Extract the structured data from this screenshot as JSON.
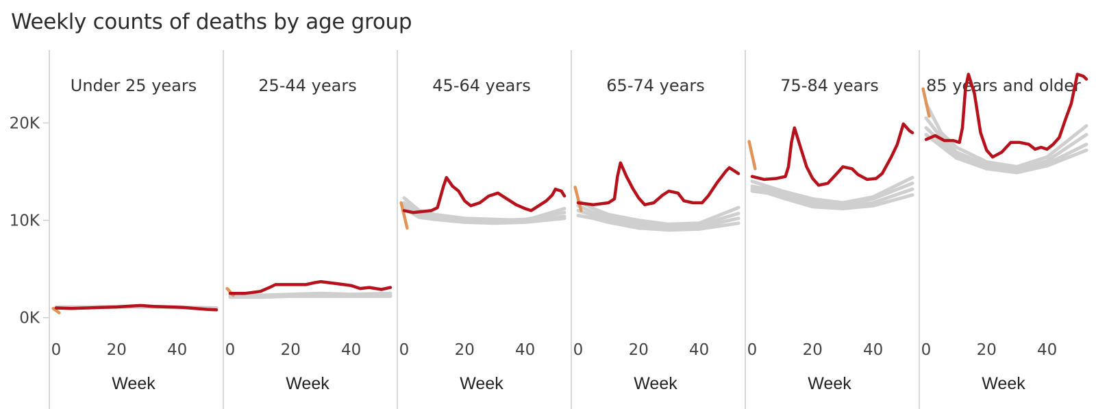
{
  "title": "Weekly counts of deaths by age group",
  "colors": {
    "current_year": "#b5121b",
    "previous_years": "#cfcfcf",
    "prior_year_end": "#e0945a",
    "divider": "#cccccc"
  },
  "chart_data": {
    "type": "line",
    "title": "Weekly counts of deaths by age group",
    "xlabel": "Week",
    "x_ticks": [
      "0",
      "20",
      "40"
    ],
    "y_ticks": [
      "0K",
      "10K",
      "20K"
    ],
    "ylim": [
      -1500,
      27000
    ],
    "xlim": [
      0,
      53
    ],
    "panels": [
      {
        "label": "Under 25 years",
        "current": [
          [
            0,
            1000
          ],
          [
            5,
            950
          ],
          [
            10,
            1000
          ],
          [
            15,
            1050
          ],
          [
            20,
            1100
          ],
          [
            25,
            1200
          ],
          [
            28,
            1250
          ],
          [
            32,
            1150
          ],
          [
            38,
            1100
          ],
          [
            42,
            1050
          ],
          [
            46,
            950
          ],
          [
            50,
            850
          ],
          [
            53,
            800
          ]
        ],
        "previous": [
          [
            [
              0,
              1100
            ],
            [
              10,
              1100
            ],
            [
              20,
              1150
            ],
            [
              30,
              1150
            ],
            [
              40,
              1100
            ],
            [
              53,
              1000
            ]
          ],
          [
            [
              0,
              1000
            ],
            [
              10,
              1050
            ],
            [
              20,
              1100
            ],
            [
              30,
              1100
            ],
            [
              40,
              1050
            ],
            [
              53,
              950
            ]
          ]
        ],
        "prior_year_end": [
          [
            -1,
            950
          ],
          [
            1,
            500
          ]
        ]
      },
      {
        "label": "25-44 years",
        "current": [
          [
            0,
            2500
          ],
          [
            5,
            2500
          ],
          [
            10,
            2700
          ],
          [
            13,
            3100
          ],
          [
            15,
            3400
          ],
          [
            20,
            3400
          ],
          [
            25,
            3400
          ],
          [
            28,
            3600
          ],
          [
            30,
            3700
          ],
          [
            35,
            3500
          ],
          [
            40,
            3300
          ],
          [
            43,
            3000
          ],
          [
            46,
            3100
          ],
          [
            50,
            2900
          ],
          [
            53,
            3100
          ]
        ],
        "previous": [
          [
            [
              0,
              2400
            ],
            [
              10,
              2300
            ],
            [
              20,
              2400
            ],
            [
              30,
              2500
            ],
            [
              40,
              2400
            ],
            [
              53,
              2500
            ]
          ],
          [
            [
              0,
              2200
            ],
            [
              10,
              2200
            ],
            [
              20,
              2300
            ],
            [
              30,
              2300
            ],
            [
              40,
              2300
            ],
            [
              53,
              2300
            ]
          ],
          [
            [
              0,
              2100
            ],
            [
              10,
              2100
            ],
            [
              20,
              2200
            ],
            [
              30,
              2200
            ],
            [
              40,
              2200
            ],
            [
              53,
              2200
            ]
          ]
        ],
        "prior_year_end": [
          [
            -1,
            3000
          ],
          [
            1,
            2300
          ]
        ]
      },
      {
        "label": "45-64 years",
        "current": [
          [
            0,
            11000
          ],
          [
            3,
            10800
          ],
          [
            6,
            10900
          ],
          [
            9,
            11000
          ],
          [
            11,
            11300
          ],
          [
            13,
            13500
          ],
          [
            14,
            14400
          ],
          [
            16,
            13500
          ],
          [
            18,
            13000
          ],
          [
            20,
            12000
          ],
          [
            22,
            11500
          ],
          [
            25,
            11800
          ],
          [
            28,
            12500
          ],
          [
            31,
            12800
          ],
          [
            34,
            12200
          ],
          [
            37,
            11600
          ],
          [
            40,
            11200
          ],
          [
            42,
            11000
          ],
          [
            44,
            11400
          ],
          [
            47,
            12000
          ],
          [
            49,
            12600
          ],
          [
            50,
            13200
          ],
          [
            52,
            13000
          ],
          [
            53,
            12500
          ]
        ],
        "previous": [
          [
            [
              0,
              12300
            ],
            [
              5,
              11000
            ],
            [
              10,
              10600
            ],
            [
              20,
              10200
            ],
            [
              30,
              10100
            ],
            [
              40,
              10000
            ],
            [
              53,
              11200
            ]
          ],
          [
            [
              0,
              11800
            ],
            [
              5,
              10700
            ],
            [
              10,
              10400
            ],
            [
              20,
              10000
            ],
            [
              30,
              10000
            ],
            [
              40,
              10100
            ],
            [
              53,
              10800
            ]
          ],
          [
            [
              0,
              11500
            ],
            [
              5,
              10500
            ],
            [
              10,
              10200
            ],
            [
              20,
              9900
            ],
            [
              30,
              9800
            ],
            [
              40,
              9900
            ],
            [
              53,
              10400
            ]
          ],
          [
            [
              0,
              11200
            ],
            [
              5,
              10300
            ],
            [
              10,
              10100
            ],
            [
              20,
              9800
            ],
            [
              30,
              9700
            ],
            [
              40,
              9800
            ],
            [
              53,
              10200
            ]
          ]
        ],
        "prior_year_end": [
          [
            -1,
            11800
          ],
          [
            1,
            9200
          ]
        ]
      },
      {
        "label": "65-74 years",
        "current": [
          [
            0,
            11800
          ],
          [
            5,
            11600
          ],
          [
            10,
            11800
          ],
          [
            12,
            12200
          ],
          [
            13,
            14500
          ],
          [
            14,
            15900
          ],
          [
            16,
            14500
          ],
          [
            18,
            13300
          ],
          [
            20,
            12300
          ],
          [
            22,
            11600
          ],
          [
            25,
            11800
          ],
          [
            28,
            12600
          ],
          [
            30,
            13000
          ],
          [
            33,
            12800
          ],
          [
            35,
            12000
          ],
          [
            38,
            11800
          ],
          [
            41,
            11800
          ],
          [
            43,
            12500
          ],
          [
            46,
            13900
          ],
          [
            49,
            15100
          ],
          [
            50,
            15400
          ],
          [
            52,
            15000
          ],
          [
            53,
            14800
          ]
        ],
        "previous": [
          [
            [
              0,
              12000
            ],
            [
              5,
              11200
            ],
            [
              10,
              10600
            ],
            [
              20,
              10000
            ],
            [
              30,
              9600
            ],
            [
              40,
              9700
            ],
            [
              53,
              11300
            ]
          ],
          [
            [
              0,
              11500
            ],
            [
              5,
              10800
            ],
            [
              10,
              10400
            ],
            [
              20,
              9700
            ],
            [
              30,
              9400
            ],
            [
              40,
              9500
            ],
            [
              53,
              10700
            ]
          ],
          [
            [
              0,
              11000
            ],
            [
              5,
              10500
            ],
            [
              10,
              10100
            ],
            [
              20,
              9500
            ],
            [
              30,
              9200
            ],
            [
              40,
              9300
            ],
            [
              53,
              10200
            ]
          ],
          [
            [
              0,
              10500
            ],
            [
              5,
              10200
            ],
            [
              10,
              9800
            ],
            [
              20,
              9200
            ],
            [
              30,
              9000
            ],
            [
              40,
              9100
            ],
            [
              53,
              9700
            ]
          ]
        ],
        "prior_year_end": [
          [
            -1,
            13400
          ],
          [
            1,
            11000
          ]
        ]
      },
      {
        "label": "75-84 years",
        "current": [
          [
            0,
            14500
          ],
          [
            4,
            14200
          ],
          [
            8,
            14300
          ],
          [
            11,
            14500
          ],
          [
            12,
            15500
          ],
          [
            13,
            18000
          ],
          [
            14,
            19500
          ],
          [
            16,
            17500
          ],
          [
            18,
            15500
          ],
          [
            20,
            14300
          ],
          [
            22,
            13600
          ],
          [
            25,
            13800
          ],
          [
            28,
            14800
          ],
          [
            30,
            15500
          ],
          [
            33,
            15300
          ],
          [
            35,
            14700
          ],
          [
            38,
            14200
          ],
          [
            41,
            14300
          ],
          [
            43,
            14800
          ],
          [
            46,
            16500
          ],
          [
            48,
            17800
          ],
          [
            50,
            19900
          ],
          [
            52,
            19200
          ],
          [
            53,
            19000
          ]
        ],
        "previous": [
          [
            [
              0,
              14000
            ],
            [
              5,
              13500
            ],
            [
              10,
              13000
            ],
            [
              20,
              12200
            ],
            [
              30,
              11800
            ],
            [
              40,
              12400
            ],
            [
              53,
              14400
            ]
          ],
          [
            [
              0,
              13500
            ],
            [
              5,
              13200
            ],
            [
              10,
              12800
            ],
            [
              20,
              12000
            ],
            [
              30,
              11600
            ],
            [
              40,
              12200
            ],
            [
              53,
              13800
            ]
          ],
          [
            [
              0,
              13200
            ],
            [
              5,
              13000
            ],
            [
              10,
              12600
            ],
            [
              20,
              11700
            ],
            [
              30,
              11400
            ],
            [
              40,
              11800
            ],
            [
              53,
              13200
            ]
          ],
          [
            [
              0,
              13000
            ],
            [
              5,
              12800
            ],
            [
              10,
              12300
            ],
            [
              20,
              11400
            ],
            [
              30,
              11200
            ],
            [
              40,
              11500
            ],
            [
              53,
              12600
            ]
          ]
        ],
        "prior_year_end": [
          [
            -1,
            18100
          ],
          [
            1,
            15300
          ]
        ]
      },
      {
        "label": "85 years and older",
        "current": [
          [
            0,
            18300
          ],
          [
            3,
            18700
          ],
          [
            6,
            18200
          ],
          [
            9,
            18200
          ],
          [
            11,
            18000
          ],
          [
            12,
            19500
          ],
          [
            13,
            23500
          ],
          [
            14,
            25000
          ],
          [
            16,
            23000
          ],
          [
            18,
            19000
          ],
          [
            20,
            17200
          ],
          [
            22,
            16500
          ],
          [
            25,
            17000
          ],
          [
            28,
            18000
          ],
          [
            31,
            18000
          ],
          [
            34,
            17800
          ],
          [
            36,
            17300
          ],
          [
            38,
            17500
          ],
          [
            40,
            17300
          ],
          [
            42,
            17800
          ],
          [
            44,
            18500
          ],
          [
            46,
            20300
          ],
          [
            48,
            22000
          ],
          [
            50,
            25000
          ],
          [
            52,
            24800
          ],
          [
            53,
            24500
          ]
        ],
        "previous": [
          [
            [
              0,
              22000
            ],
            [
              5,
              19000
            ],
            [
              10,
              17500
            ],
            [
              20,
              16000
            ],
            [
              30,
              15500
            ],
            [
              40,
              16500
            ],
            [
              53,
              19700
            ]
          ],
          [
            [
              0,
              20500
            ],
            [
              5,
              18500
            ],
            [
              10,
              17000
            ],
            [
              20,
              15700
            ],
            [
              30,
              15200
            ],
            [
              40,
              16100
            ],
            [
              53,
              18800
            ]
          ],
          [
            [
              0,
              19500
            ],
            [
              5,
              18000
            ],
            [
              10,
              16700
            ],
            [
              20,
              15500
            ],
            [
              30,
              15000
            ],
            [
              40,
              15800
            ],
            [
              53,
              17800
            ]
          ],
          [
            [
              0,
              18800
            ],
            [
              5,
              17600
            ],
            [
              10,
              16400
            ],
            [
              20,
              15300
            ],
            [
              30,
              14900
            ],
            [
              40,
              15600
            ],
            [
              53,
              17200
            ]
          ]
        ],
        "prior_year_end": [
          [
            -1,
            23500
          ],
          [
            1,
            20700
          ]
        ]
      }
    ]
  }
}
